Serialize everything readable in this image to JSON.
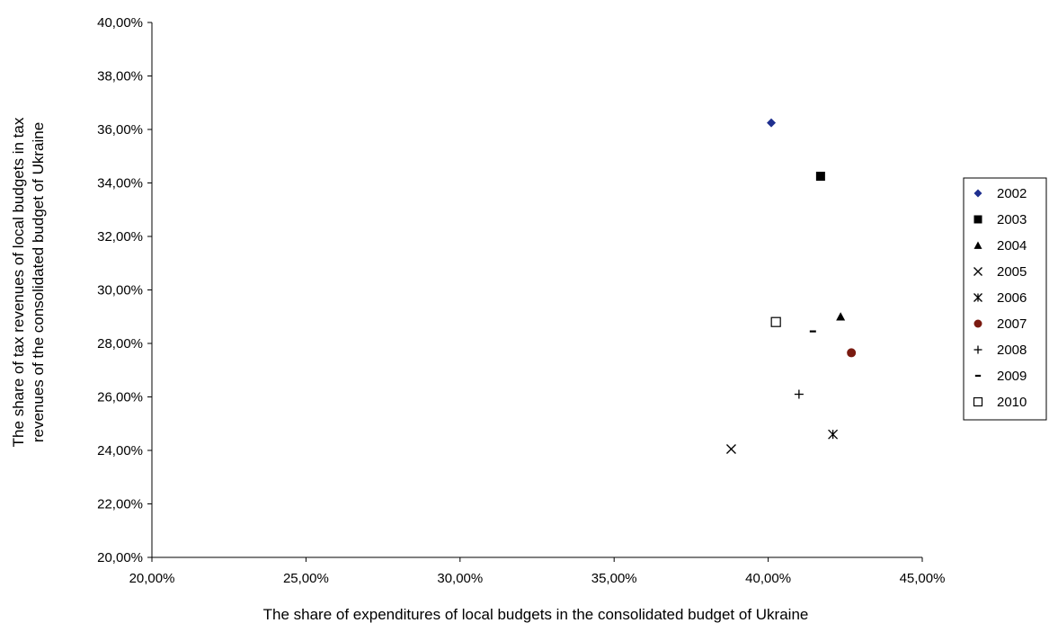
{
  "chart_data": {
    "type": "scatter",
    "title": "",
    "xlabel": "The share of expenditures of local budgets in the consolidated budget of Ukraine",
    "ylabel_lines": [
      "The share of tax revenues of local budgets in tax",
      "revenues of the consolidated budget of Ukraine"
    ],
    "xlim": [
      0.2,
      0.45
    ],
    "ylim": [
      0.2,
      0.4
    ],
    "x_ticks": [
      0.2,
      0.25,
      0.3,
      0.35,
      0.4,
      0.45
    ],
    "x_tick_labels": [
      "20,00%",
      "25,00%",
      "30,00%",
      "35,00%",
      "40,00%",
      "45,00%"
    ],
    "y_ticks": [
      0.2,
      0.22,
      0.24,
      0.26,
      0.28,
      0.3,
      0.32,
      0.34,
      0.36,
      0.38,
      0.4
    ],
    "y_tick_labels": [
      "20,00%",
      "22,00%",
      "24,00%",
      "26,00%",
      "28,00%",
      "30,00%",
      "32,00%",
      "34,00%",
      "36,00%",
      "38,00%",
      "40,00%"
    ],
    "grid": false,
    "legend_position": "right",
    "series": [
      {
        "name": "2002",
        "x": 0.401,
        "y": 0.3625,
        "marker": "diamond",
        "color": "#1f2f8f"
      },
      {
        "name": "2003",
        "x": 0.417,
        "y": 0.3425,
        "marker": "square",
        "color": "#000000"
      },
      {
        "name": "2004",
        "x": 0.4235,
        "y": 0.29,
        "marker": "triangle",
        "color": "#000000"
      },
      {
        "name": "2005",
        "x": 0.388,
        "y": 0.2405,
        "marker": "x",
        "color": "#000000"
      },
      {
        "name": "2006",
        "x": 0.421,
        "y": 0.246,
        "marker": "star",
        "color": "#000000"
      },
      {
        "name": "2007",
        "x": 0.427,
        "y": 0.2765,
        "marker": "circle",
        "color": "#7a1a10"
      },
      {
        "name": "2008",
        "x": 0.41,
        "y": 0.261,
        "marker": "plus",
        "color": "#000000"
      },
      {
        "name": "2009",
        "x": 0.4145,
        "y": 0.2845,
        "marker": "dash",
        "color": "#000000"
      },
      {
        "name": "2010",
        "x": 0.4025,
        "y": 0.288,
        "marker": "open-square",
        "color": "#000000"
      }
    ]
  }
}
